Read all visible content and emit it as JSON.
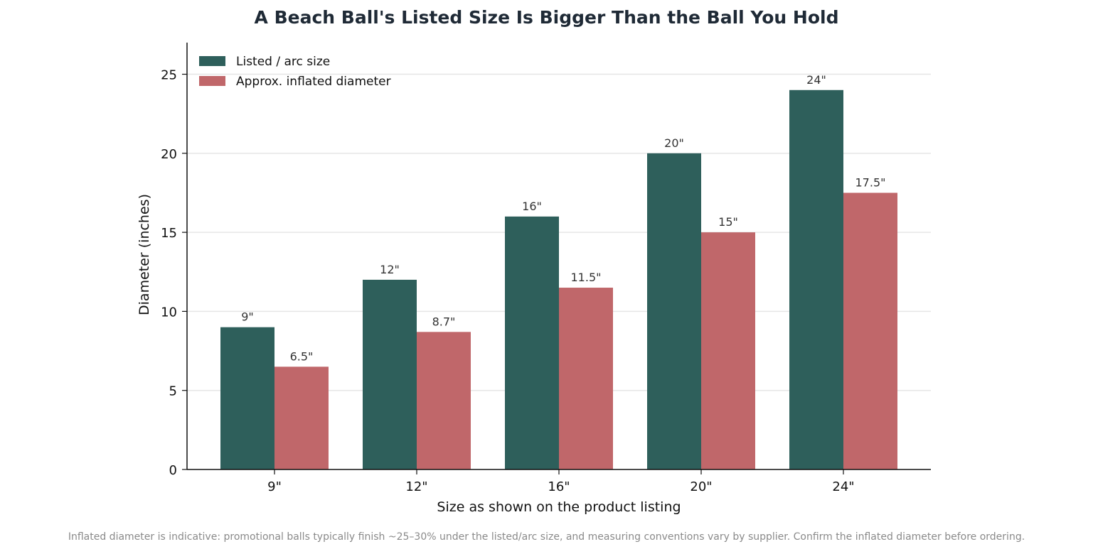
{
  "chart_data": {
    "type": "bar",
    "title": "A Beach Ball's Listed Size Is Bigger Than the Ball You Hold",
    "categories": [
      "9\"",
      "12\"",
      "16\"",
      "20\"",
      "24\""
    ],
    "series": [
      {
        "name": "Listed / arc size",
        "values": [
          9,
          12,
          16,
          20,
          24
        ],
        "labels": [
          "9\"",
          "12\"",
          "16\"",
          "20\"",
          "24\""
        ],
        "color": "#2e5f5b"
      },
      {
        "name": "Approx. inflated diameter",
        "values": [
          6.5,
          8.7,
          11.5,
          15,
          17.5
        ],
        "labels": [
          "6.5\"",
          "8.7\"",
          "11.5\"",
          "15\"",
          "17.5\""
        ],
        "color": "#c0676a"
      }
    ],
    "xlabel": "Size as shown on the product listing",
    "ylabel": "Diameter (inches)",
    "ylim": [
      0,
      27
    ],
    "yticks": [
      0,
      5,
      10,
      15,
      20,
      25
    ],
    "grid": "horizontal",
    "legend": "top-left"
  },
  "footnote": "Inflated diameter is indicative: promotional balls typically finish ~25–30% under the listed/arc size, and measuring conventions vary by supplier. Confirm the inflated diameter before ordering."
}
